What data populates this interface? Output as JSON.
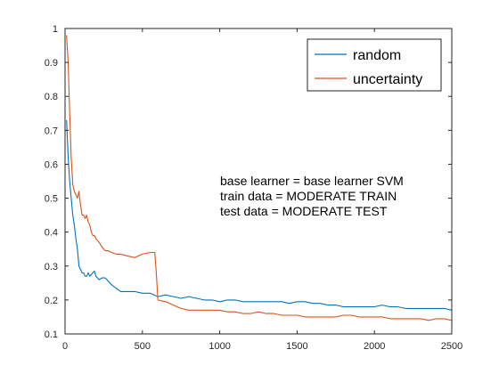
{
  "chart_data": {
    "type": "line",
    "title": "",
    "xlabel": "",
    "ylabel": "",
    "xlim": [
      0,
      2500
    ],
    "ylim": [
      0.1,
      1
    ],
    "xticks": [
      0,
      500,
      1000,
      1500,
      2000,
      2500
    ],
    "xtick_labels": [
      "0",
      "500",
      "1000",
      "1500",
      "2000",
      "2500"
    ],
    "yticks": [
      0.1,
      0.2,
      0.3,
      0.4,
      0.5,
      0.6,
      0.7,
      0.8,
      0.9,
      1
    ],
    "ytick_labels": [
      "0.1",
      "0.2",
      "0.3",
      "0.4",
      "0.5",
      "0.6",
      "0.7",
      "0.8",
      "0.9",
      "1"
    ],
    "grid": false,
    "legend_position": "top-right",
    "annotations": [
      "base learner = base learner SVM",
      "train data = MODERATE TRAIN",
      "test data = MODERATE TEST"
    ],
    "series": [
      {
        "name": "random",
        "color": "#0072BD",
        "x": [
          10,
          20,
          30,
          40,
          50,
          60,
          70,
          80,
          90,
          100,
          110,
          120,
          130,
          140,
          150,
          160,
          170,
          180,
          190,
          200,
          210,
          220,
          240,
          260,
          280,
          300,
          330,
          360,
          400,
          450,
          500,
          550,
          600,
          650,
          700,
          750,
          800,
          850,
          900,
          950,
          1000,
          1050,
          1100,
          1150,
          1200,
          1250,
          1300,
          1350,
          1400,
          1450,
          1500,
          1550,
          1600,
          1650,
          1700,
          1750,
          1800,
          1850,
          1900,
          1950,
          2000,
          2050,
          2100,
          2150,
          2200,
          2250,
          2300,
          2350,
          2400,
          2450,
          2500
        ],
        "values": [
          0.73,
          0.62,
          0.55,
          0.5,
          0.45,
          0.42,
          0.38,
          0.35,
          0.3,
          0.29,
          0.28,
          0.28,
          0.27,
          0.27,
          0.28,
          0.27,
          0.275,
          0.28,
          0.285,
          0.27,
          0.265,
          0.26,
          0.265,
          0.265,
          0.255,
          0.245,
          0.235,
          0.225,
          0.225,
          0.225,
          0.22,
          0.22,
          0.21,
          0.215,
          0.21,
          0.205,
          0.21,
          0.205,
          0.2,
          0.2,
          0.195,
          0.2,
          0.2,
          0.195,
          0.195,
          0.195,
          0.195,
          0.195,
          0.195,
          0.19,
          0.195,
          0.195,
          0.19,
          0.19,
          0.185,
          0.185,
          0.18,
          0.18,
          0.18,
          0.18,
          0.18,
          0.185,
          0.18,
          0.18,
          0.175,
          0.175,
          0.175,
          0.175,
          0.175,
          0.175,
          0.17
        ]
      },
      {
        "name": "uncertainty",
        "color": "#D95319",
        "x": [
          10,
          20,
          30,
          40,
          50,
          60,
          70,
          80,
          90,
          100,
          110,
          120,
          130,
          140,
          150,
          160,
          170,
          180,
          190,
          200,
          220,
          240,
          260,
          280,
          300,
          330,
          360,
          400,
          450,
          500,
          550,
          580,
          590,
          600,
          650,
          700,
          750,
          800,
          850,
          900,
          950,
          1000,
          1050,
          1100,
          1150,
          1200,
          1250,
          1300,
          1350,
          1400,
          1450,
          1500,
          1550,
          1600,
          1650,
          1700,
          1750,
          1800,
          1850,
          1900,
          1950,
          2000,
          2050,
          2100,
          2150,
          2200,
          2250,
          2300,
          2350,
          2400,
          2450,
          2500
        ],
        "values": [
          0.98,
          0.9,
          0.75,
          0.62,
          0.54,
          0.52,
          0.51,
          0.5,
          0.52,
          0.48,
          0.45,
          0.45,
          0.44,
          0.45,
          0.43,
          0.42,
          0.4,
          0.39,
          0.39,
          0.38,
          0.37,
          0.355,
          0.345,
          0.345,
          0.34,
          0.335,
          0.335,
          0.33,
          0.325,
          0.335,
          0.34,
          0.34,
          0.28,
          0.2,
          0.195,
          0.185,
          0.175,
          0.17,
          0.17,
          0.17,
          0.17,
          0.17,
          0.165,
          0.165,
          0.16,
          0.16,
          0.165,
          0.16,
          0.16,
          0.155,
          0.155,
          0.155,
          0.15,
          0.15,
          0.15,
          0.15,
          0.15,
          0.155,
          0.155,
          0.15,
          0.15,
          0.15,
          0.15,
          0.145,
          0.145,
          0.145,
          0.145,
          0.145,
          0.14,
          0.145,
          0.145,
          0.14
        ]
      }
    ]
  }
}
